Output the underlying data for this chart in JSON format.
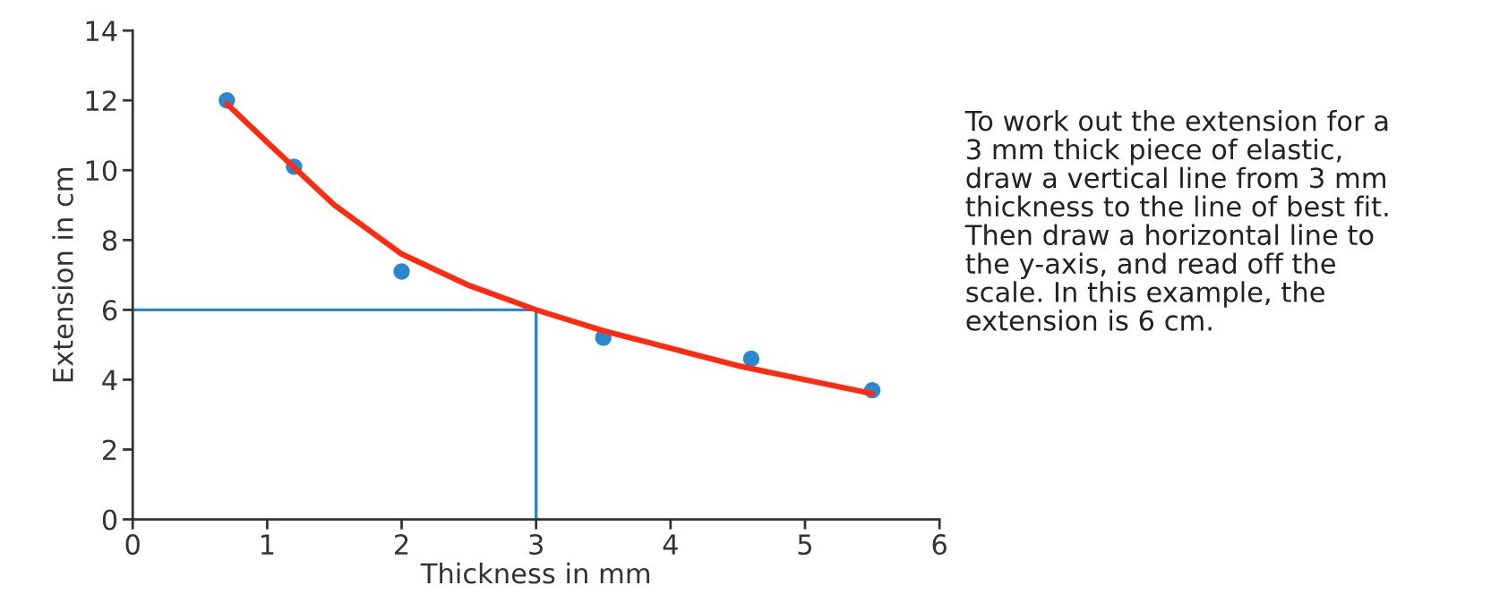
{
  "chart_data": {
    "type": "scatter",
    "xlabel": "Thickness in mm",
    "ylabel": "Extension in cm",
    "xlim": [
      0,
      6
    ],
    "ylim": [
      0,
      14
    ],
    "xticks": [
      0,
      1,
      2,
      3,
      4,
      5,
      6
    ],
    "yticks": [
      0,
      2,
      4,
      6,
      8,
      10,
      12,
      14
    ],
    "grid": false,
    "series": [
      {
        "marker": "circle",
        "color": "#2a88d0",
        "x": [
          0.7,
          1.2,
          2.0,
          3.5,
          4.6,
          5.5
        ],
        "values": [
          12.0,
          10.1,
          7.1,
          5.2,
          4.6,
          3.7
        ]
      },
      {
        "type": "line",
        "color": "#2a88d0",
        "x": [
          0,
          3,
          3
        ],
        "values": [
          6,
          6,
          0
        ],
        "marker": "none"
      },
      {
        "type": "line",
        "color": "#ff2a10",
        "x": [
          0.7,
          1.0,
          1.5,
          2.0,
          2.5,
          3.0,
          3.5,
          4.0,
          4.5,
          5.0,
          5.5
        ],
        "values": [
          11.9,
          10.8,
          9.0,
          7.6,
          6.7,
          6.0,
          5.4,
          4.9,
          4.4,
          4.0,
          3.6
        ],
        "marker": "none"
      }
    ],
    "annotations": [
      "To work out the extension for a\n3 mm thick piece of elastic,\ndraw a vertical line from 3 mm\nthickness to the line of best fit.\nThen draw a horizontal line to\nthe y-axis, and read off the\nscale. In this example, the\nextension is 6 cm."
    ]
  }
}
